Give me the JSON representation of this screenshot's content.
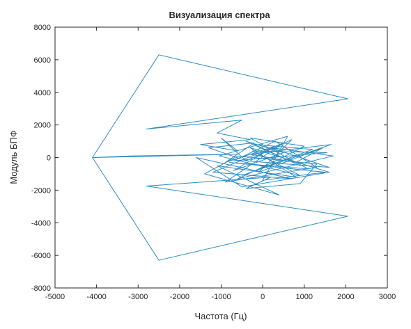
{
  "chart_data": {
    "type": "line",
    "title": "Визуализация спектра",
    "xlabel": "Частота (Гц)",
    "ylabel": "Модуль БПФ",
    "xlim": [
      -5000,
      3000
    ],
    "ylim": [
      -8000,
      8000
    ],
    "xticks": [
      -5000,
      -4000,
      -3000,
      -2000,
      -1000,
      0,
      1000,
      2000,
      3000
    ],
    "yticks": [
      -8000,
      -6000,
      -4000,
      -2000,
      0,
      2000,
      4000,
      6000,
      8000
    ],
    "grid": false,
    "legend": "none",
    "color": "#2b8cc4",
    "series": [
      {
        "x": [
          -4100,
          -2500,
          2050,
          -2800,
          -500,
          -1100,
          -300,
          -1500,
          -600,
          -1000,
          -400,
          -1300,
          -200,
          -900,
          300,
          -700,
          500,
          -400,
          900,
          -200,
          1200,
          -500,
          1650,
          -300,
          800,
          1450,
          -100,
          700,
          -400,
          1600,
          200,
          1700,
          -600,
          400,
          1000,
          -300,
          1100,
          -800,
          1500,
          0,
          600,
          -1050,
          900,
          -250,
          1550,
          -700,
          300,
          1300,
          -900,
          500,
          -1200,
          700,
          -1600,
          -500,
          1600,
          -300,
          800,
          -1100,
          400,
          -1400,
          -600,
          1300,
          900,
          -400,
          200,
          -2800,
          2050,
          -2500,
          -4100,
          -3200,
          -600,
          -4100
        ],
        "y": [
          0,
          6300,
          3600,
          1750,
          2300,
          1500,
          1100,
          800,
          400,
          1200,
          -200,
          600,
          900,
          -300,
          700,
          -800,
          300,
          1000,
          -500,
          800,
          500,
          -1100,
          800,
          200,
          -300,
          600,
          -900,
          1100,
          -200,
          -600,
          600,
          100,
          -1300,
          -100,
          700,
          1200,
          -700,
          -300,
          -900,
          -1400,
          1300,
          100,
          -1100,
          400,
          300,
          -200,
          1000,
          -600,
          -1500,
          900,
          -900,
          -1300,
          0,
          -1800,
          -900,
          600,
          -1200,
          -500,
          -2300,
          -1000,
          100,
          -400,
          -1600,
          -1900,
          -1200,
          -1750,
          -3600,
          -6300,
          0,
          100,
          200,
          0
        ]
      }
    ]
  }
}
